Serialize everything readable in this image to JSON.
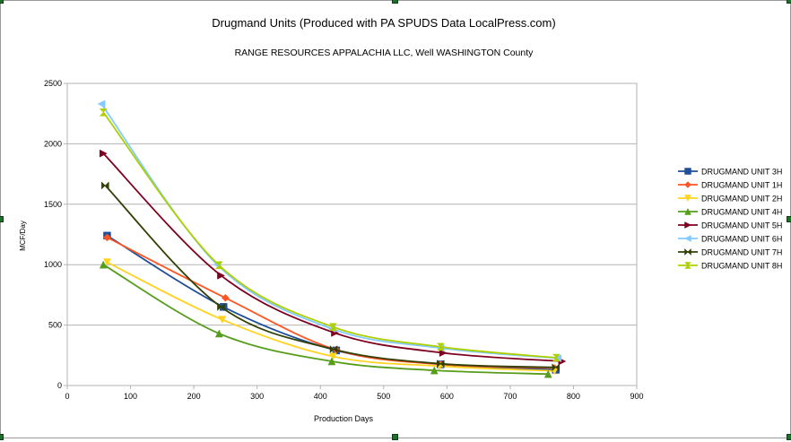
{
  "chart_data": {
    "type": "line",
    "title": "Drugmand Units (Produced with PA SPUDS Data LocalPress.com)",
    "subtitle": "RANGE RESOURCES APPALACHIA LLC, Well  WASHINGTON County",
    "xlabel": "Production Days",
    "ylabel": "MCF/Day",
    "xlim": [
      0,
      900
    ],
    "ylim": [
      0,
      2500
    ],
    "xticks": [
      0,
      100,
      200,
      300,
      400,
      500,
      600,
      700,
      800,
      900
    ],
    "yticks": [
      0,
      500,
      1000,
      1500,
      2000,
      2500
    ],
    "grid": "horizontal",
    "legend": "right",
    "series": [
      {
        "name": "DRUGMAND UNIT 3H",
        "color": "#1f4e99",
        "marker": "square",
        "x": [
          63,
          247,
          425,
          590,
          772
        ],
        "y": [
          1240,
          650,
          290,
          175,
          130
        ]
      },
      {
        "name": "DRUGMAND UNIT 1H",
        "color": "#ff5522",
        "marker": "diamond",
        "x": [
          63,
          250,
          425,
          590,
          770
        ],
        "y": [
          1225,
          725,
          295,
          175,
          145
        ]
      },
      {
        "name": "DRUGMAND UNIT 2H",
        "color": "#ffd320",
        "marker": "triangle-down",
        "x": [
          63,
          245,
          420,
          588,
          770
        ],
        "y": [
          1020,
          545,
          240,
          160,
          120
        ]
      },
      {
        "name": "DRUGMAND UNIT 4H",
        "color": "#579d1c",
        "marker": "triangle-up",
        "x": [
          57,
          240,
          418,
          580,
          760
        ],
        "y": [
          1000,
          430,
          200,
          125,
          95
        ]
      },
      {
        "name": "DRUGMAND UNIT 5H",
        "color": "#7e0021",
        "marker": "triangle-right",
        "x": [
          57,
          243,
          423,
          594,
          782
        ],
        "y": [
          1920,
          910,
          435,
          270,
          200
        ]
      },
      {
        "name": "DRUGMAND UNIT 6H",
        "color": "#83caff",
        "marker": "triangle-left",
        "x": [
          54,
          237,
          418,
          590,
          775
        ],
        "y": [
          2330,
          1000,
          470,
          310,
          225
        ]
      },
      {
        "name": "DRUGMAND UNIT 7H",
        "color": "#314004",
        "marker": "bowtie",
        "x": [
          60,
          243,
          421,
          590,
          772
        ],
        "y": [
          1655,
          650,
          300,
          180,
          150
        ]
      },
      {
        "name": "DRUGMAND UNIT 8H",
        "color": "#aecf00",
        "marker": "hourglass",
        "x": [
          57,
          240,
          420,
          590,
          773
        ],
        "y": [
          2260,
          995,
          485,
          320,
          230
        ]
      }
    ]
  }
}
